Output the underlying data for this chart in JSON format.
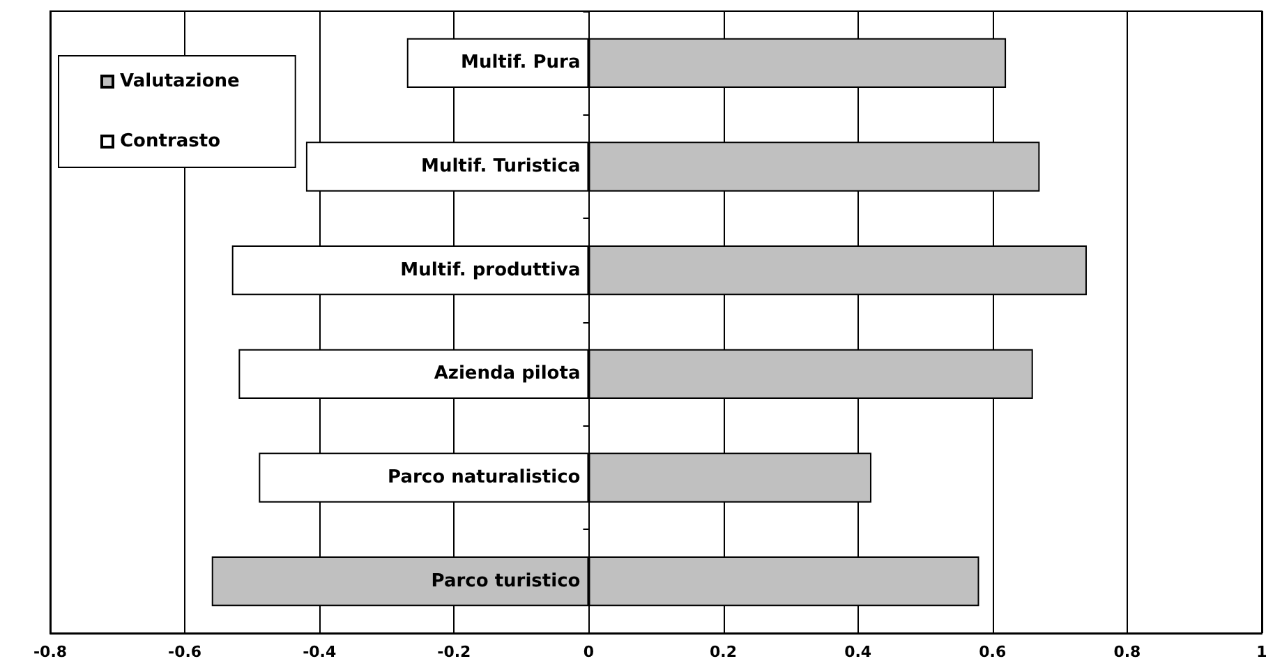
{
  "chart_data": {
    "type": "bar",
    "orientation": "horizontal",
    "stacked": true,
    "categories": [
      "Multif. Pura",
      "Multif. Turistica",
      "Multif. produttiva",
      "Azienda pilota",
      "Parco naturalistico",
      "Parco turistico"
    ],
    "series": [
      {
        "name": "Valutazione",
        "color": "#c0c0c0",
        "values": [
          0.62,
          0.67,
          0.74,
          0.66,
          0.42,
          0.58
        ]
      },
      {
        "name": "Contrasto",
        "color": "#ffffff",
        "colors": [
          "#ffffff",
          "#ffffff",
          "#ffffff",
          "#ffffff",
          "#ffffff",
          "#c0c0c0"
        ],
        "values": [
          -0.27,
          -0.42,
          -0.53,
          -0.52,
          -0.49,
          -0.56
        ]
      }
    ],
    "xlim": [
      -0.8,
      1
    ],
    "xticks": [
      -0.8,
      -0.6,
      -0.4,
      -0.2,
      0,
      0.2,
      0.4,
      0.6,
      0.8,
      1
    ],
    "grid": "x",
    "legend": "top left"
  }
}
